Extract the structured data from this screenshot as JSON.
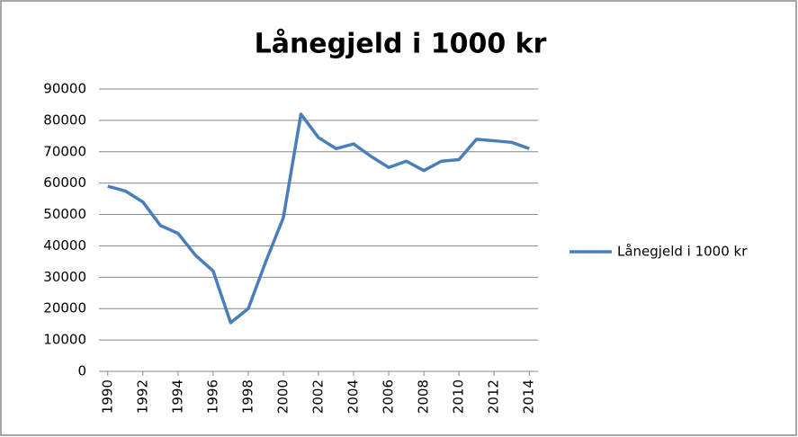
{
  "chart_data": {
    "type": "line",
    "title": "Lånegjeld i 1000 kr",
    "x": [
      1990,
      1991,
      1992,
      1993,
      1994,
      1995,
      1996,
      1997,
      1998,
      1999,
      2000,
      2001,
      2002,
      2003,
      2004,
      2005,
      2006,
      2007,
      2008,
      2009,
      2010,
      2011,
      2012,
      2013,
      2014
    ],
    "series": [
      {
        "name": "Lånegjeld i 1000 kr",
        "color": "#4a7ebb",
        "values": [
          59000,
          57500,
          54000,
          46500,
          44000,
          37000,
          32000,
          15500,
          20000,
          35000,
          49000,
          82000,
          74500,
          71000,
          72500,
          68500,
          65000,
          67000,
          64000,
          67000,
          67500,
          74000,
          73500,
          73000,
          71000
        ]
      }
    ],
    "xlim": [
      1989.5,
      2014.5
    ],
    "xticks": [
      1990,
      1992,
      1994,
      1996,
      1998,
      2000,
      2002,
      2004,
      2006,
      2008,
      2010,
      2012,
      2014
    ],
    "ylim": [
      0,
      90000
    ],
    "yticks": [
      0,
      10000,
      20000,
      30000,
      40000,
      50000,
      60000,
      70000,
      80000,
      90000
    ],
    "grid": true,
    "legend": "right"
  }
}
